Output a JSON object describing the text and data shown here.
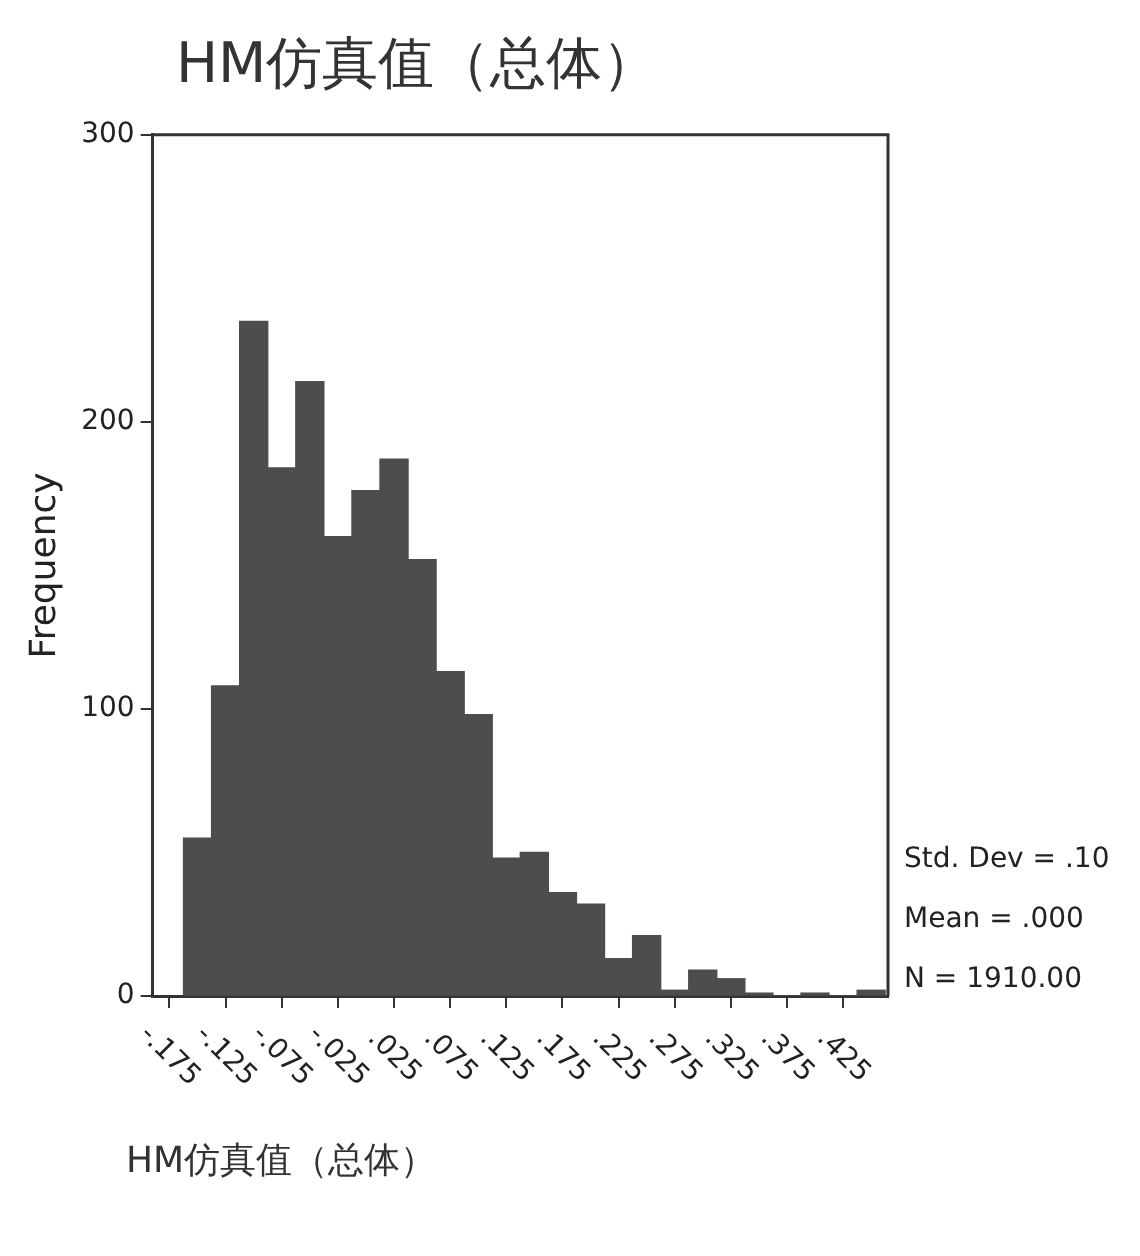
{
  "chart_data": {
    "type": "histogram",
    "title": "HM仿真值（总体）",
    "xlabel": "HM仿真值（总体）",
    "ylabel": "Frequency",
    "bins": [
      -0.1625,
      -0.1375,
      -0.1125,
      -0.0875,
      -0.0625,
      -0.0375,
      -0.0125,
      0.0125,
      0.0375,
      0.0625,
      0.0875,
      0.1125,
      0.1375,
      0.1625,
      0.1875,
      0.2125,
      0.2375,
      0.2625,
      0.2875,
      0.3125,
      0.3375,
      0.3625,
      0.3875,
      0.4125,
      0.4375,
      0.4625
    ],
    "values": [
      55,
      108,
      235,
      184,
      214,
      160,
      176,
      187,
      152,
      113,
      98,
      48,
      50,
      36,
      32,
      13,
      21,
      2,
      9,
      6,
      1,
      0,
      1,
      0,
      2
    ],
    "color": "#4d4d4d",
    "xlim": [
      -0.19,
      0.465
    ],
    "xticks": [
      {
        "value": -0.175,
        "label": "-.175"
      },
      {
        "value": -0.125,
        "label": "-.125"
      },
      {
        "value": -0.075,
        "label": "-.075"
      },
      {
        "value": -0.025,
        "label": "-.025"
      },
      {
        "value": 0.025,
        "label": ".025"
      },
      {
        "value": 0.075,
        "label": ".075"
      },
      {
        "value": 0.125,
        "label": ".125"
      },
      {
        "value": 0.175,
        "label": ".175"
      },
      {
        "value": 0.225,
        "label": ".225"
      },
      {
        "value": 0.275,
        "label": ".275"
      },
      {
        "value": 0.325,
        "label": ".325"
      },
      {
        "value": 0.375,
        "label": ".375"
      },
      {
        "value": 0.425,
        "label": ".425"
      }
    ],
    "ylim": [
      0,
      300
    ],
    "yticks": [
      0,
      100,
      200,
      300
    ],
    "annotations": [
      "Std. Dev = .10",
      "Mean = .000",
      "N = 1910.00"
    ]
  }
}
